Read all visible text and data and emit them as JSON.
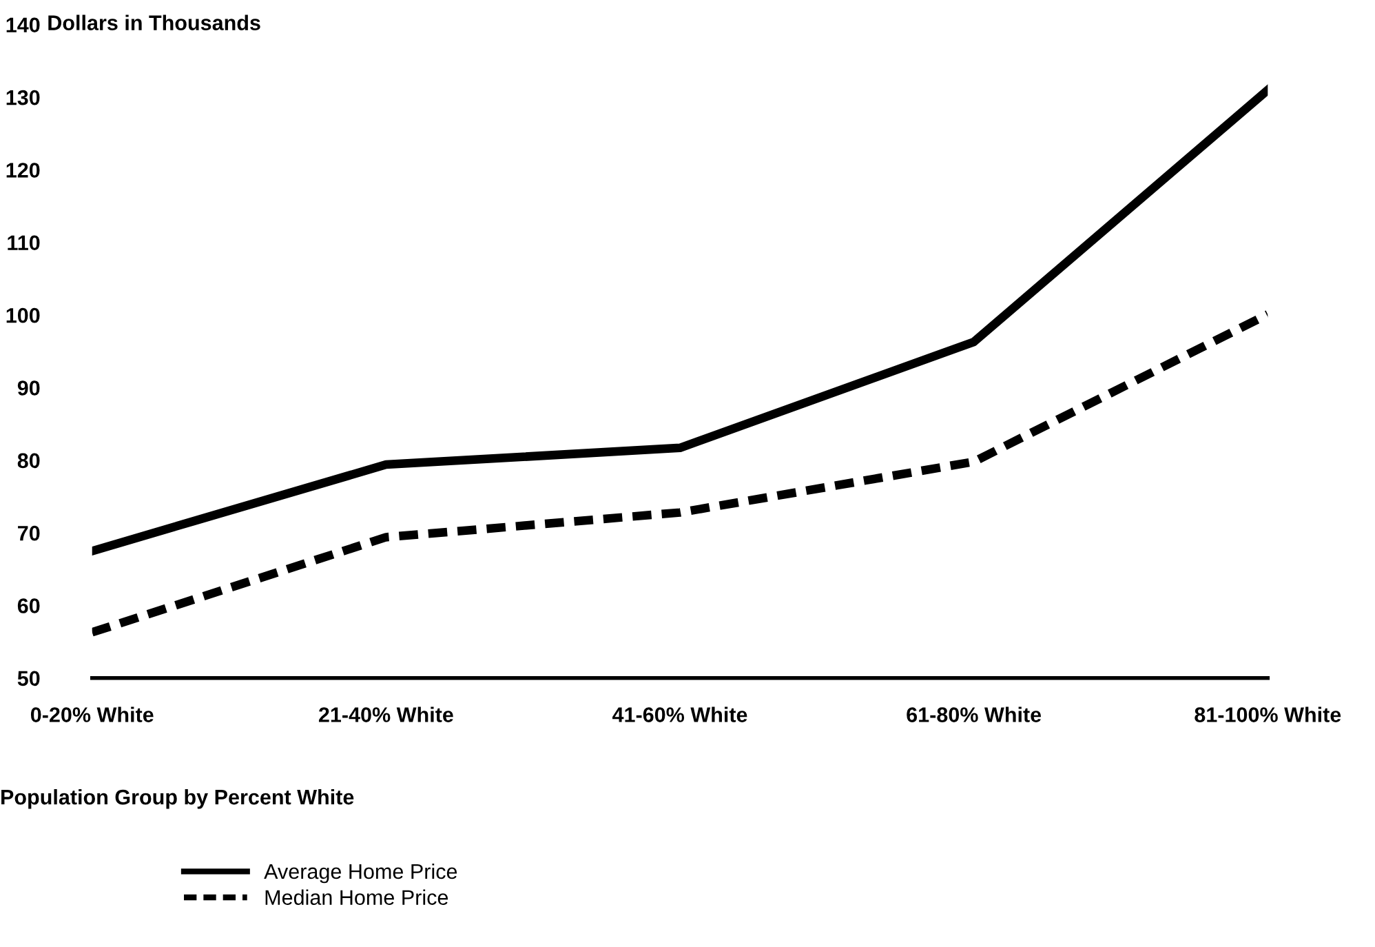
{
  "chart_data": {
    "type": "line",
    "ylabel": "Dollars in Thousands",
    "xlabel": "Population Group by Percent White",
    "categories": [
      "0-20% White",
      "21-40% White",
      "41-60% White",
      "61-80% White",
      "81-100% White"
    ],
    "series": [
      {
        "name": "Average Home Price",
        "color": "#000000",
        "line_style": "solid",
        "values": [
          67.5,
          79.4,
          81.7,
          96.3,
          131.0
        ]
      },
      {
        "name": "Median Home Price",
        "color": "#000000",
        "line_style": "dashed",
        "values": [
          56.3,
          69.4,
          72.8,
          79.8,
          100.1
        ]
      }
    ],
    "ylim": [
      50,
      140
    ],
    "yticks": [
      50,
      60,
      70,
      80,
      90,
      100,
      110,
      120,
      130,
      140
    ],
    "grid": false,
    "legend": "bottom left",
    "marker": "none"
  }
}
